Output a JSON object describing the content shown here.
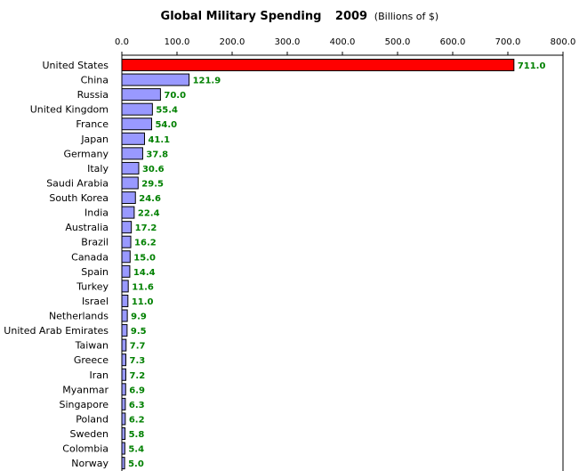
{
  "chart_data": {
    "type": "bar",
    "orientation": "horizontal",
    "title": "Global Military Spending",
    "title_year": "2009",
    "subtitle": "(Billions of $)",
    "xlim": [
      0,
      800
    ],
    "ticks": [
      "0.0",
      "100.0",
      "200.0",
      "300.0",
      "400.0",
      "500.0",
      "600.0",
      "700.0",
      "800.0"
    ],
    "tick_values": [
      0,
      100,
      200,
      300,
      400,
      500,
      600,
      700,
      800
    ],
    "grid": false,
    "categories": [
      "United States",
      "China",
      "Russia",
      "United Kingdom",
      "France",
      "Japan",
      "Germany",
      "Italy",
      "Saudi Arabia",
      "South Korea",
      "India",
      "Australia",
      "Brazil",
      "Canada",
      "Spain",
      "Turkey",
      "Israel",
      "Netherlands",
      "United Arab Emirates",
      "Taiwan",
      "Greece",
      "Iran",
      "Myanmar",
      "Singapore",
      "Poland",
      "Sweden",
      "Colombia",
      "Norway"
    ],
    "values": [
      711.0,
      121.9,
      70.0,
      55.4,
      54.0,
      41.1,
      37.8,
      30.6,
      29.5,
      24.6,
      22.4,
      17.2,
      16.2,
      15.0,
      14.4,
      11.6,
      11.0,
      9.9,
      9.5,
      7.7,
      7.3,
      7.2,
      6.9,
      6.3,
      6.2,
      5.8,
      5.4,
      5.0
    ],
    "labels": [
      "711.0",
      "121.9",
      "70.0",
      "55.4",
      "54.0",
      "41.1",
      "37.8",
      "30.6",
      "29.5",
      "24.6",
      "22.4",
      "17.2",
      "16.2",
      "15.0",
      "14.4",
      "11.6",
      "11.0",
      "9.9",
      "9.5",
      "7.7",
      "7.3",
      "7.2",
      "6.9",
      "6.3",
      "6.2",
      "5.8",
      "5.4",
      "5.0"
    ],
    "colors": {
      "highlight": "#ff0000",
      "bar": "#9999ff",
      "label": "#008000"
    }
  }
}
